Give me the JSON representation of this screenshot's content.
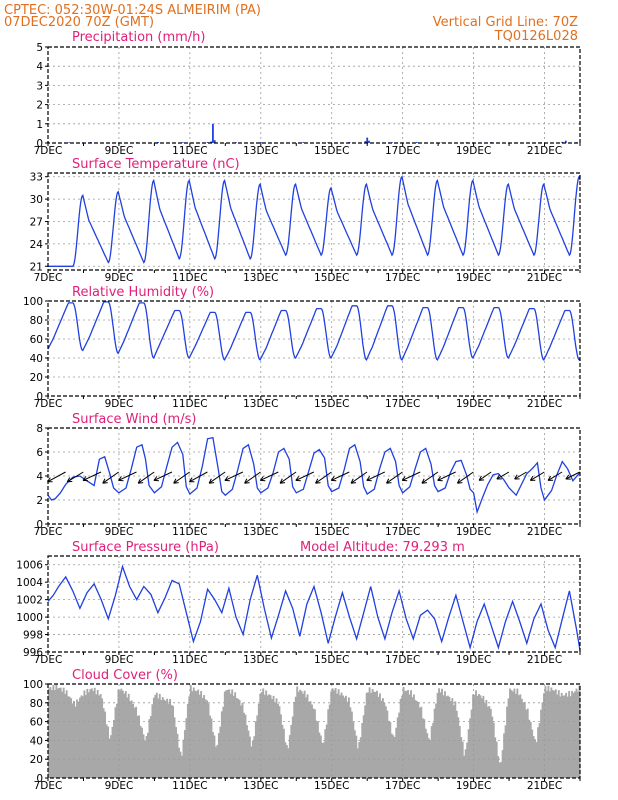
{
  "header": {
    "line1_left": "CPTEC:   052:30W-01:24S   ALMEIRIM (PA)",
    "line2_left": "07DEC2020 70Z (GMT)",
    "line2_right": "Vertical Grid Line: 70Z",
    "line3_right": "TQ0126L028"
  },
  "colors": {
    "header": "#e07020",
    "titles": "#e0207a",
    "series": "#2040e0",
    "cloud": "#a8a8a8"
  },
  "x_axis": {
    "day_start": 7,
    "day_end": 22,
    "tick_labels": [
      "7DEC",
      "9DEC",
      "11DEC",
      "13DEC",
      "15DEC",
      "17DEC",
      "19DEC",
      "21DEC"
    ],
    "tick_days": [
      7,
      9,
      11,
      13,
      15,
      17,
      19,
      21
    ]
  },
  "chart_data": [
    {
      "id": "precip",
      "type": "bar",
      "title": "Precipitation (mm/h)",
      "ylim": [
        0,
        5
      ],
      "yticks": [
        0,
        1,
        2,
        3,
        4,
        5
      ],
      "x_day": [
        7.0,
        7.6,
        8.2,
        8.9,
        9.5,
        10.1,
        10.8,
        11.5,
        11.6,
        11.65,
        11.7,
        12.3,
        13.0,
        13.6,
        14.2,
        14.9,
        15.5,
        15.95,
        16.0,
        16.05,
        16.7,
        17.4,
        18.1,
        18.8,
        19.5,
        20.2,
        20.9,
        21.5,
        21.6,
        21.9
      ],
      "values": [
        0.05,
        0.04,
        0.05,
        0.03,
        0.04,
        0.05,
        0.04,
        0.05,
        0.08,
        1.0,
        0.15,
        0.04,
        0.05,
        0.03,
        0.05,
        0.04,
        0.05,
        0.1,
        0.28,
        0.12,
        0.04,
        0.05,
        0.03,
        0.04,
        0.05,
        0.03,
        0.04,
        0.06,
        0.12,
        0.04
      ]
    },
    {
      "id": "temp",
      "type": "line",
      "title": "Surface Temperature (nC)",
      "ylim": [
        20.5,
        33.5
      ],
      "yticks": [
        21,
        24,
        27,
        30,
        33
      ],
      "cycle_start_day": 6.7,
      "daily_max": [
        21.0,
        30.5,
        31.0,
        32.5,
        32.5,
        32.5,
        32.0,
        32.0,
        31.5,
        32.0,
        33.0,
        32.5,
        32.5,
        32.0,
        32.0,
        33.0
      ],
      "daily_min": [
        21.0,
        21.0,
        21.5,
        21.5,
        22.0,
        22.0,
        22.0,
        22.5,
        22.5,
        22.5,
        22.5,
        22.5,
        22.5,
        22.5,
        22.5,
        22.5
      ]
    },
    {
      "id": "rh",
      "type": "line",
      "title": "Relative Humidity (%)",
      "ylim": [
        0,
        100
      ],
      "yticks": [
        0,
        20,
        40,
        60,
        80,
        100
      ],
      "daily_low": [
        48,
        48,
        45,
        40,
        40,
        38,
        38,
        40,
        40,
        38,
        38,
        38,
        40,
        40,
        38,
        38
      ],
      "daily_high": [
        98,
        98,
        99,
        98,
        90,
        88,
        88,
        90,
        92,
        95,
        95,
        93,
        93,
        93,
        92,
        90
      ]
    },
    {
      "id": "wind",
      "type": "line",
      "title": "Surface Wind (m/s)",
      "ylim": [
        0,
        8
      ],
      "yticks": [
        0,
        2,
        4,
        6,
        8
      ],
      "x_day": [
        7.0,
        7.1,
        7.2,
        7.35,
        7.5,
        7.7,
        7.9,
        8.1,
        8.3,
        8.45,
        8.6,
        8.75,
        8.85,
        9.0,
        9.2,
        9.35,
        9.5,
        9.65,
        9.75,
        9.85,
        10.0,
        10.2,
        10.35,
        10.5,
        10.65,
        10.8,
        10.9,
        11.0,
        11.2,
        11.35,
        11.5,
        11.65,
        11.8,
        11.9,
        12.0,
        12.2,
        12.35,
        12.5,
        12.65,
        12.8,
        12.9,
        13.0,
        13.2,
        13.35,
        13.5,
        13.65,
        13.8,
        13.9,
        14.0,
        14.2,
        14.35,
        14.5,
        14.65,
        14.8,
        14.9,
        15.0,
        15.2,
        15.35,
        15.5,
        15.65,
        15.8,
        15.9,
        16.0,
        16.2,
        16.35,
        16.5,
        16.65,
        16.8,
        16.9,
        17.0,
        17.2,
        17.35,
        17.5,
        17.65,
        17.8,
        17.9,
        18.0,
        18.2,
        18.35,
        18.5,
        18.65,
        18.8,
        18.9,
        19.0,
        19.1,
        19.25,
        19.4,
        19.55,
        19.7,
        19.85,
        20.0,
        20.2,
        20.35,
        20.5,
        20.65,
        20.8,
        20.9,
        21.0,
        21.2,
        21.35,
        21.5,
        21.65,
        21.8,
        22.0
      ],
      "values": [
        2.4,
        2.0,
        2.1,
        2.6,
        3.3,
        3.9,
        4.0,
        3.6,
        3.2,
        5.4,
        5.6,
        4.1,
        3.0,
        2.6,
        3.0,
        4.6,
        6.4,
        6.6,
        5.4,
        3.2,
        2.6,
        3.1,
        4.8,
        6.4,
        6.8,
        5.8,
        3.1,
        2.5,
        3.0,
        4.8,
        7.1,
        7.2,
        4.6,
        2.7,
        2.4,
        2.9,
        4.5,
        6.3,
        6.6,
        5.0,
        3.0,
        2.6,
        3.0,
        4.3,
        6.0,
        6.3,
        5.4,
        3.1,
        2.6,
        2.9,
        4.4,
        5.9,
        6.2,
        5.5,
        3.2,
        2.7,
        3.0,
        4.5,
        6.3,
        6.6,
        5.2,
        3.1,
        2.5,
        2.9,
        4.6,
        6.0,
        6.3,
        5.2,
        3.2,
        2.6,
        3.1,
        4.6,
        6.0,
        6.3,
        5.0,
        3.2,
        2.7,
        3.0,
        4.3,
        5.2,
        5.3,
        4.1,
        2.9,
        2.6,
        1.0,
        2.2,
        3.3,
        4.1,
        4.2,
        3.7,
        3.0,
        2.4,
        3.3,
        4.2,
        4.6,
        5.1,
        3.0,
        2.0,
        2.8,
        4.1,
        5.2,
        4.6,
        3.6,
        4.3
      ],
      "arrow_days": [
        7.1,
        7.6,
        8.1,
        8.6,
        9.1,
        9.6,
        10.1,
        10.6,
        11.1,
        11.6,
        12.1,
        12.6,
        13.1,
        13.6,
        14.1,
        14.6,
        15.1,
        15.6,
        16.1,
        16.6,
        17.1,
        17.6,
        18.1,
        18.6,
        19.1,
        19.6,
        20.1,
        20.6,
        21.1,
        21.6
      ],
      "arrow_dx": [
        -0.9,
        -0.8,
        -0.9,
        -0.8,
        -0.9,
        -0.8,
        -0.9,
        -0.8,
        -0.9,
        -0.8,
        -0.9,
        -0.8,
        -0.9,
        -0.8,
        -0.9,
        -0.8,
        -0.9,
        -0.8,
        -0.9,
        -0.8,
        -0.9,
        -0.8,
        -0.9,
        -0.8,
        -0.6,
        -0.6,
        -0.6,
        -0.7,
        -0.7,
        -0.7
      ],
      "arrow_dy": [
        0.7,
        0.7,
        0.6,
        0.8,
        0.6,
        0.8,
        0.6,
        0.8,
        0.7,
        0.8,
        0.6,
        0.8,
        0.6,
        0.8,
        0.6,
        0.8,
        0.6,
        0.8,
        0.6,
        0.8,
        0.6,
        0.8,
        0.6,
        0.8,
        0.6,
        0.5,
        0.5,
        0.6,
        0.6,
        0.5
      ]
    },
    {
      "id": "pres",
      "type": "line",
      "title": "Surface Pressure (hPa)",
      "subtitle": "Model Altitude: 79.293 m",
      "ylim": [
        996,
        1007
      ],
      "yticks": [
        996,
        998,
        1000,
        1002,
        1004,
        1006
      ],
      "x_day": [
        7.0,
        7.15,
        7.3,
        7.5,
        7.7,
        7.9,
        8.1,
        8.3,
        8.5,
        8.7,
        8.9,
        9.1,
        9.3,
        9.5,
        9.7,
        9.9,
        10.1,
        10.3,
        10.5,
        10.7,
        10.9,
        11.1,
        11.3,
        11.5,
        11.7,
        11.9,
        12.1,
        12.3,
        12.5,
        12.7,
        12.9,
        13.1,
        13.3,
        13.5,
        13.7,
        13.9,
        14.1,
        14.3,
        14.5,
        14.7,
        14.9,
        15.1,
        15.3,
        15.5,
        15.7,
        15.9,
        16.1,
        16.3,
        16.5,
        16.7,
        16.9,
        17.1,
        17.3,
        17.5,
        17.7,
        17.9,
        18.1,
        18.3,
        18.5,
        18.7,
        18.9,
        19.1,
        19.3,
        19.5,
        19.7,
        19.9,
        20.1,
        20.3,
        20.5,
        20.7,
        20.9,
        21.1,
        21.3,
        21.5,
        21.7,
        21.9,
        22.0
      ],
      "values": [
        1001.8,
        1002.5,
        1003.5,
        1004.6,
        1003.0,
        1001.0,
        1002.8,
        1003.8,
        1002.0,
        999.8,
        1002.5,
        1005.8,
        1003.5,
        1002.0,
        1003.5,
        1002.6,
        1000.5,
        1002.2,
        1004.2,
        1003.8,
        1000.5,
        997.2,
        999.5,
        1003.2,
        1002.0,
        1000.5,
        1003.3,
        1000.0,
        998.0,
        1002.0,
        1004.8,
        1001.0,
        997.6,
        1000.2,
        1003.0,
        1001.0,
        997.8,
        1001.5,
        1003.5,
        1000.5,
        997.0,
        1000.0,
        1002.8,
        1000.0,
        997.5,
        1000.5,
        1003.5,
        1000.0,
        997.5,
        1000.5,
        1003.0,
        999.8,
        997.5,
        1000.2,
        1000.8,
        999.8,
        997.2,
        1000.0,
        1002.5,
        999.5,
        996.5,
        999.5,
        1001.5,
        999.0,
        996.5,
        999.5,
        1001.8,
        999.5,
        997.0,
        999.8,
        1001.5,
        998.5,
        996.5,
        999.8,
        1003.0,
        998.6,
        996.2
      ]
    },
    {
      "id": "cloud",
      "type": "bar",
      "title": "Cloud Cover (%)",
      "ylim": [
        0,
        100
      ],
      "yticks": [
        0,
        20,
        40,
        60,
        80,
        100
      ],
      "x_day": [
        7.0,
        7.25,
        7.5,
        7.75,
        8.0,
        8.25,
        8.5,
        8.75,
        9.0,
        9.25,
        9.5,
        9.75,
        10.0,
        10.25,
        10.5,
        10.75,
        11.0,
        11.25,
        11.5,
        11.75,
        12.0,
        12.25,
        12.5,
        12.75,
        13.0,
        13.25,
        13.5,
        13.75,
        14.0,
        14.25,
        14.5,
        14.75,
        15.0,
        15.25,
        15.5,
        15.75,
        16.0,
        16.25,
        16.5,
        16.75,
        17.0,
        17.25,
        17.5,
        17.75,
        18.0,
        18.25,
        18.5,
        18.75,
        19.0,
        19.25,
        19.5,
        19.75,
        20.0,
        20.25,
        20.5,
        20.75,
        21.0,
        21.25,
        21.5,
        21.75,
        22.0
      ],
      "values": [
        95,
        97,
        92,
        78,
        90,
        95,
        88,
        40,
        96,
        88,
        72,
        38,
        90,
        84,
        80,
        20,
        96,
        92,
        82,
        30,
        95,
        90,
        76,
        32,
        94,
        88,
        80,
        28,
        95,
        90,
        74,
        34,
        96,
        90,
        82,
        30,
        94,
        92,
        80,
        40,
        95,
        90,
        76,
        38,
        95,
        88,
        78,
        22,
        92,
        86,
        72,
        10,
        94,
        92,
        74,
        36,
        96,
        94,
        88,
        90,
        96
      ]
    }
  ]
}
